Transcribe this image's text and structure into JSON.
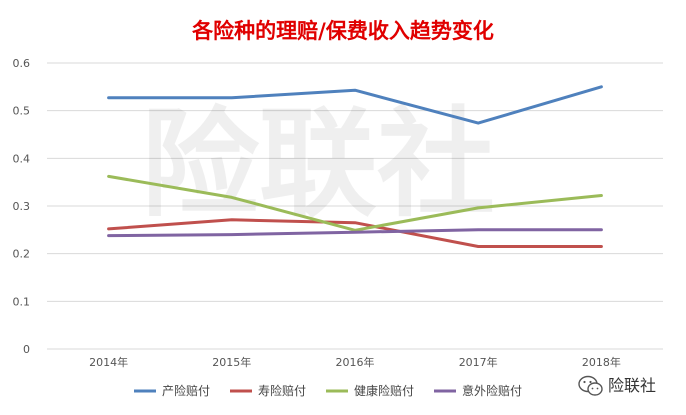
{
  "chart_data": {
    "type": "line",
    "title": "各险种的理赔/保费收入趋势变化",
    "xlabel": "",
    "ylabel": "",
    "categories": [
      "2014年",
      "2015年",
      "2016年",
      "2017年",
      "2018年"
    ],
    "ylim": [
      0,
      0.6
    ],
    "yticks": [
      "0",
      "0.1",
      "0.2",
      "0.3",
      "0.4",
      "0.5",
      "0.6"
    ],
    "grid": true,
    "legend_position": "bottom",
    "series": [
      {
        "name": "产险赔付",
        "color": "#4f81bd",
        "values": [
          0.527,
          0.527,
          0.543,
          0.474,
          0.55
        ]
      },
      {
        "name": "寿险赔付",
        "color": "#c0504d",
        "values": [
          0.252,
          0.271,
          0.265,
          0.215,
          0.215
        ]
      },
      {
        "name": "健康险赔付",
        "color": "#9bbb59",
        "values": [
          0.362,
          0.318,
          0.249,
          0.296,
          0.322
        ]
      },
      {
        "name": "意外险赔付",
        "color": "#8064a2",
        "values": [
          0.238,
          0.24,
          0.245,
          0.25,
          0.25
        ]
      }
    ]
  },
  "watermark": "险联社",
  "brand": {
    "icon": "wechat-icon",
    "label": "险联社"
  }
}
